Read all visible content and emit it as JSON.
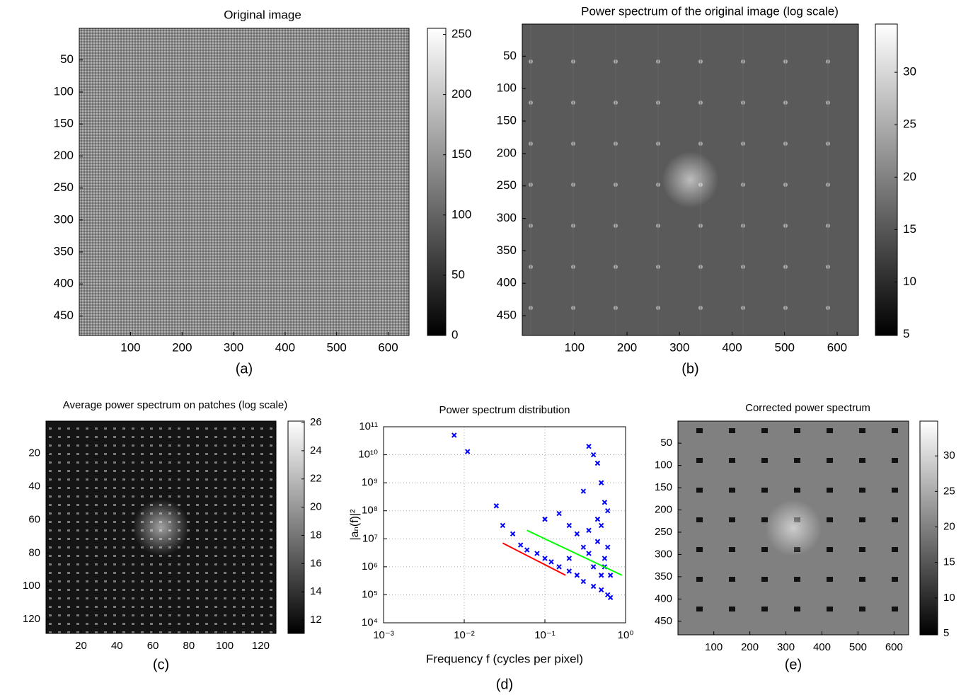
{
  "chart_data": [
    {
      "type": "image",
      "title": "Original image",
      "caption": "(a)",
      "colormap": "gray",
      "xlim": [
        0.5,
        640.5
      ],
      "ylim": [
        480.5,
        0.5
      ],
      "xticks": [
        100,
        200,
        300,
        400,
        500,
        600
      ],
      "yticks": [
        50,
        100,
        150,
        200,
        250,
        300,
        350,
        400,
        450
      ],
      "clim": [
        0,
        255
      ],
      "cticks": [
        0,
        50,
        100,
        150,
        200,
        250
      ]
    },
    {
      "type": "image",
      "title": "Power spectrum of the original image (log scale)",
      "caption": "(b)",
      "colormap": "gray",
      "xlim": [
        0.5,
        640.5
      ],
      "ylim": [
        480.5,
        0.5
      ],
      "xticks": [
        100,
        200,
        300,
        400,
        500,
        600
      ],
      "yticks": [
        50,
        100,
        150,
        200,
        250,
        300,
        350,
        400,
        450
      ],
      "clim": [
        4.9,
        34.6
      ],
      "cticks": [
        5,
        10,
        15,
        20,
        25,
        30
      ]
    },
    {
      "type": "image",
      "title": "Average power spectrum on patches (log scale)",
      "caption": "(c)",
      "colormap": "gray",
      "xlim": [
        0.5,
        128.5
      ],
      "ylim": [
        128.5,
        0.5
      ],
      "xticks": [
        20,
        40,
        60,
        80,
        100,
        120
      ],
      "yticks": [
        20,
        40,
        60,
        80,
        100,
        120
      ],
      "clim": [
        11.05,
        26.1
      ],
      "cticks": [
        12,
        14,
        16,
        18,
        20,
        22,
        24,
        26
      ]
    },
    {
      "type": "scatter",
      "title": "Power spectrum distribution",
      "caption": "(d)",
      "x_label": "Frequency f (cycles per pixel)",
      "y_label": "|aₙ(f)|²",
      "log_x": true,
      "log_y": true,
      "grid": true,
      "xlim": [
        0.001,
        1
      ],
      "ylim": [
        10000,
        100000000000
      ],
      "xticks": [
        {
          "value": 0.001,
          "label": "10⁻³"
        },
        {
          "value": 0.01,
          "label": "10⁻²"
        },
        {
          "value": 0.1,
          "label": "10⁻¹"
        },
        {
          "value": 1,
          "label": "10⁰"
        }
      ],
      "yticks": [
        {
          "value": 10000,
          "label": "10⁴"
        },
        {
          "value": 100000,
          "label": "10⁵"
        },
        {
          "value": 1000000,
          "label": "10⁶"
        },
        {
          "value": 10000000,
          "label": "10⁷"
        },
        {
          "value": 100000000,
          "label": "10⁸"
        },
        {
          "value": 1000000000,
          "label": "10⁹"
        },
        {
          "value": 10000000000,
          "label": "10¹⁰"
        },
        {
          "value": 100000000000,
          "label": "10¹¹"
        }
      ],
      "series": [
        {
          "kind": "scatter",
          "color": "#0000ff",
          "x": [
            0.0075,
            0.011,
            0.025,
            0.03,
            0.04,
            0.05,
            0.06,
            0.08,
            0.1,
            0.12,
            0.15,
            0.2,
            0.25,
            0.3,
            0.4,
            0.5,
            0.6,
            0.65,
            0.1,
            0.15,
            0.2,
            0.3,
            0.35,
            0.4,
            0.45,
            0.5,
            0.55,
            0.6,
            0.45,
            0.35,
            0.5,
            0.6,
            0.3,
            0.2,
            0.4,
            0.55,
            0.25,
            0.65,
            0.5,
            0.35,
            0.45,
            0.55
          ],
          "values": [
            50000000000,
            13000000000,
            150000000,
            30000000,
            15000000,
            6000000,
            4000000,
            3000000,
            2000000,
            1500000,
            1000000,
            700000,
            500000,
            300000,
            200000,
            150000,
            100000,
            80000,
            50000000,
            80000000,
            30000000,
            500000000,
            20000000000,
            10000000000,
            5000000000,
            1000000000,
            200000000,
            100000000,
            50000000,
            20000000,
            30000000,
            5000000,
            5000000,
            2000000,
            1000000,
            1000000,
            15000000,
            500000,
            500000,
            3000000,
            8000000,
            2000000
          ]
        },
        {
          "kind": "line",
          "color": "#ff0000",
          "x": [
            0.03,
            0.18
          ],
          "values": [
            7000000,
            500000
          ]
        },
        {
          "kind": "line",
          "color": "#00ff00",
          "x": [
            0.06,
            0.9
          ],
          "values": [
            20000000,
            500000
          ]
        }
      ]
    },
    {
      "type": "image",
      "title": "Corrected power spectrum",
      "caption": "(e)",
      "colormap": "gray",
      "xlim": [
        0.5,
        640.5
      ],
      "ylim": [
        480.5,
        0.5
      ],
      "xticks": [
        100,
        200,
        300,
        400,
        500,
        600
      ],
      "yticks": [
        50,
        100,
        150,
        200,
        250,
        300,
        350,
        400,
        450
      ],
      "clim": [
        4.8,
        34.9
      ],
      "cticks": [
        5,
        10,
        15,
        20,
        25,
        30
      ]
    }
  ]
}
